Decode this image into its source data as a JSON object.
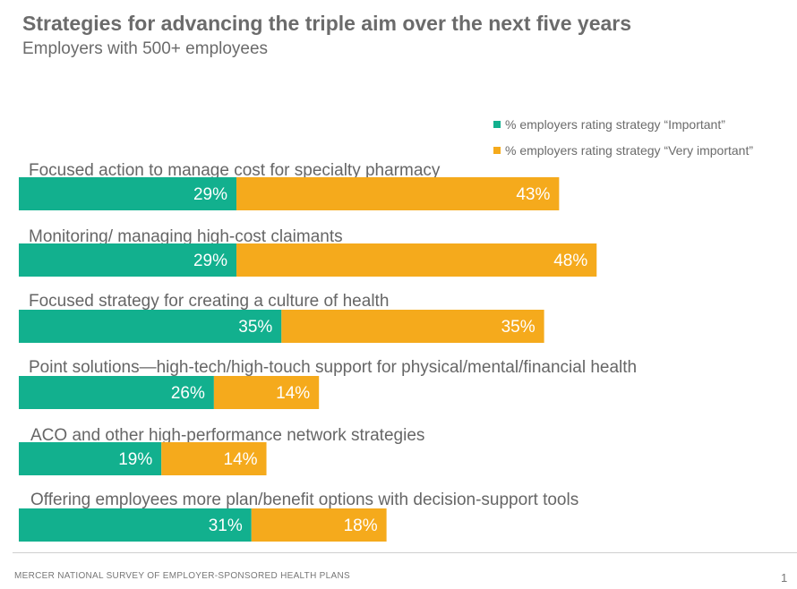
{
  "title": "Strategies for advancing the triple aim over the next five years",
  "subtitle": "Employers with 500+ employees",
  "footer": {
    "source": "MERCER  NATIONAL SURVEY OF EMPLOYER-SPONSORED  HEALTH PLANS",
    "page_number": "1"
  },
  "colors": {
    "important": "#12b08e",
    "very_important": "#f5aa1c",
    "text": "#666666"
  },
  "chart_data": {
    "type": "bar",
    "orientation": "horizontal",
    "stacked": true,
    "title": "Strategies for advancing the triple aim over the next five years",
    "subtitle": "Employers with 500+ employees",
    "categories": [
      "Focused action to manage  cost for specialty pharmacy",
      "Monitoring/  managing  high-cost claimants",
      "Focused strategy for creating a culture of health",
      "Point solutions—high-tech/high-touch  support for physical/mental/financial  health",
      "ACO  and other high-performance  network strategies",
      "Offering employees more plan/benefit options with decision-support tools"
    ],
    "series": [
      {
        "name": "% employers rating strategy “Important”",
        "values": [
          29,
          29,
          35,
          26,
          19,
          31
        ],
        "labels": [
          "29%",
          "29%",
          "35%",
          "26%",
          "19%",
          "31%"
        ]
      },
      {
        "name": "% employers rating strategy “Very important”",
        "values": [
          43,
          48,
          35,
          14,
          14,
          18
        ],
        "labels": [
          "43%",
          "48%",
          "35%",
          "14%",
          "14%",
          "18%"
        ]
      }
    ],
    "legend_position": "top-right",
    "grid": false,
    "xlim": [
      0,
      100
    ]
  }
}
